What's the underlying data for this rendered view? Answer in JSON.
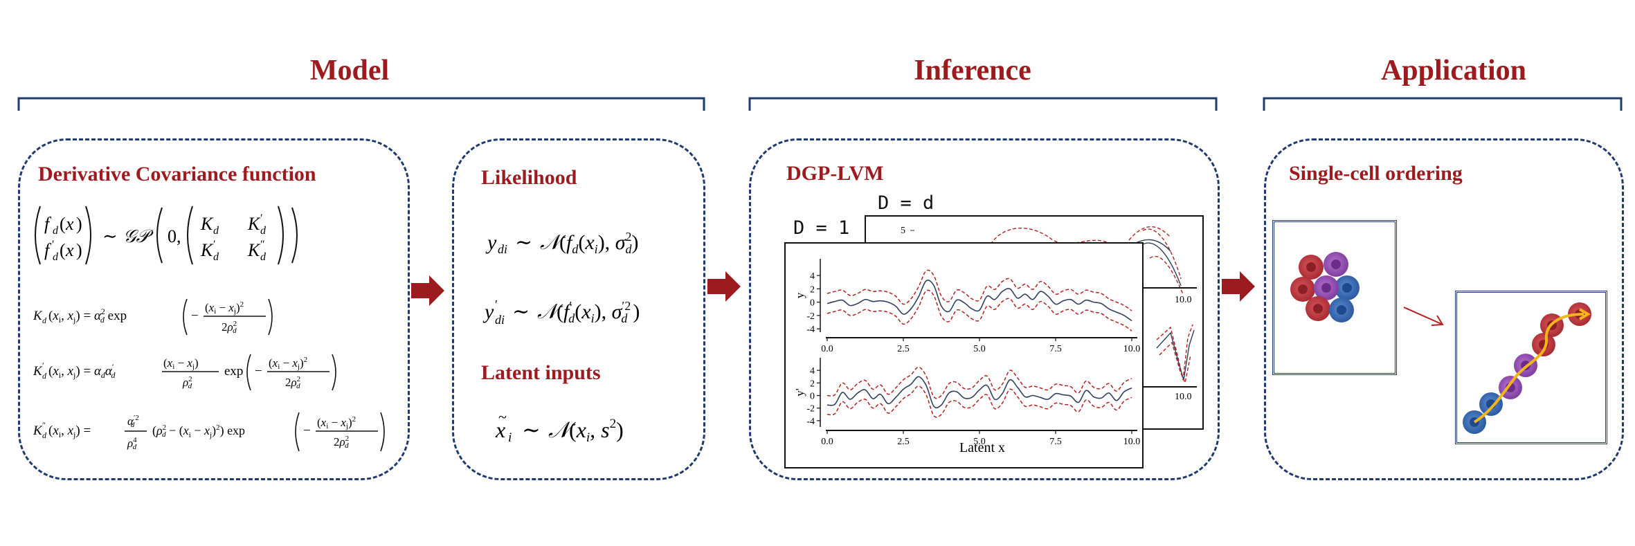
{
  "sections": {
    "model": "Model",
    "inference": "Inference",
    "application": "Application"
  },
  "model_box": {
    "title": "Derivative Covariance function",
    "gp_prior": "(f_d(x), f'_d(x)) ~ GP(0, (K_d K'_d; K'_d K''_d))",
    "kernel_k": "K_d(x_i, x_j) = α_d² exp(−(x_i − x_j)²/2ρ_d²)",
    "kernel_k1": "K'_d(x_i, x_j) = α_d α'_d (x_i − x_j)/ρ_d² exp(−(x_i − x_j)²/2ρ_d²)",
    "kernel_k2": "K''_d(x_i, x_j) = α'_d²/ρ_d⁴ (ρ_d² − (x_i − x_j)²) exp(−(x_i − x_j)²/2ρ_d²)"
  },
  "likelihood_box": {
    "title": "Likelihood",
    "eq1": "y_di ~ N(f_d(x_i), σ_d²)",
    "eq2": "y'_di ~ N(f'_d(x_i), σ'_d²)",
    "latent_title": "Latent inputs",
    "eq3": "x̃_i ~ N(x_i, s²)"
  },
  "inference_box": {
    "title": "DGP-LVM",
    "label_d1": "D = 1",
    "label_dd": "D = d",
    "xlabel": "Latent x",
    "ylabel_top": "y",
    "ylabel_bottom": "y'",
    "back_tick_5": "5",
    "back_tick_10": "10.0",
    "back_tick_10b": "10.0"
  },
  "application_box": {
    "title": "Single-cell ordering"
  },
  "chart_data": {
    "type": "line",
    "xlabel": "Latent x",
    "xlim": [
      0,
      10
    ],
    "panels": [
      {
        "ylabel": "y",
        "ylim": [
          -4.5,
          6.5
        ],
        "yticks": [
          4,
          2,
          0,
          -2,
          -4
        ],
        "xticks": [
          "0.0",
          "2.5",
          "5.0",
          "7.5",
          "10.0"
        ],
        "x": [
          0,
          0.25,
          0.5,
          0.75,
          1,
          1.25,
          1.5,
          1.75,
          2,
          2.25,
          2.5,
          2.75,
          3,
          3.25,
          3.5,
          3.75,
          4,
          4.25,
          4.5,
          4.75,
          5,
          5.25,
          5.5,
          5.75,
          6,
          6.25,
          6.5,
          6.75,
          7,
          7.25,
          7.5,
          7.75,
          8,
          8.25,
          8.5,
          8.75,
          9,
          9.25,
          9.5,
          9.75,
          10
        ],
        "mean": [
          -0.2,
          0.1,
          0.3,
          -0.5,
          -0.2,
          0.4,
          0.1,
          0.2,
          0.0,
          -0.6,
          -1.8,
          -1.0,
          0.8,
          3.2,
          2.5,
          -0.6,
          -1.4,
          0.3,
          -0.1,
          -1.0,
          -1.2,
          0.9,
          0.4,
          1.6,
          2.0,
          0.6,
          1.2,
          0.4,
          1.6,
          0.9,
          -0.3,
          0.2,
          0.4,
          -0.3,
          0.3,
          0.0,
          -0.2,
          -1.0,
          -1.5,
          -2.0,
          -2.8
        ],
        "band": 1.5
      },
      {
        "ylabel": "y'",
        "ylim": [
          -5,
          6
        ],
        "yticks": [
          4,
          2,
          0,
          -2,
          -4
        ],
        "xticks": [
          "0.0",
          "2.5",
          "5.0",
          "7.5",
          "10.0"
        ],
        "x": [
          0,
          0.25,
          0.5,
          0.75,
          1,
          1.25,
          1.5,
          1.75,
          2,
          2.25,
          2.5,
          2.75,
          3,
          3.25,
          3.5,
          3.75,
          4,
          4.25,
          4.5,
          4.75,
          5,
          5.25,
          5.5,
          5.75,
          6,
          6.25,
          6.5,
          6.75,
          7,
          7.25,
          7.5,
          7.75,
          8,
          8.25,
          8.5,
          8.75,
          9,
          9.25,
          9.5,
          9.75,
          10
        ],
        "mean": [
          -1.5,
          -1.4,
          0.5,
          -0.6,
          0.4,
          0.9,
          -0.5,
          0.2,
          -1.3,
          -0.3,
          1.0,
          1.8,
          3.0,
          1.6,
          -1.7,
          -1.5,
          0.4,
          0.6,
          -0.4,
          -0.3,
          0.9,
          1.6,
          -0.6,
          0.3,
          2.5,
          1.3,
          -0.2,
          0.0,
          -0.3,
          -0.6,
          0.3,
          0.1,
          -0.1,
          -1.1,
          0.8,
          -0.2,
          -0.4,
          0.4,
          -0.8,
          0.6,
          1.2
        ],
        "band": 1.5
      }
    ]
  },
  "colors": {
    "accent": "#9b1b1e",
    "brace": "#1f3a6e",
    "dash_border": "#1f3a6e",
    "mean_line": "#2f3f5c",
    "band_line": "#b51f1f",
    "cell_red": "#c03a3f",
    "cell_purple": "#9a52b4",
    "cell_blue": "#3e6fb5",
    "trajectory": "#f3b51a"
  }
}
